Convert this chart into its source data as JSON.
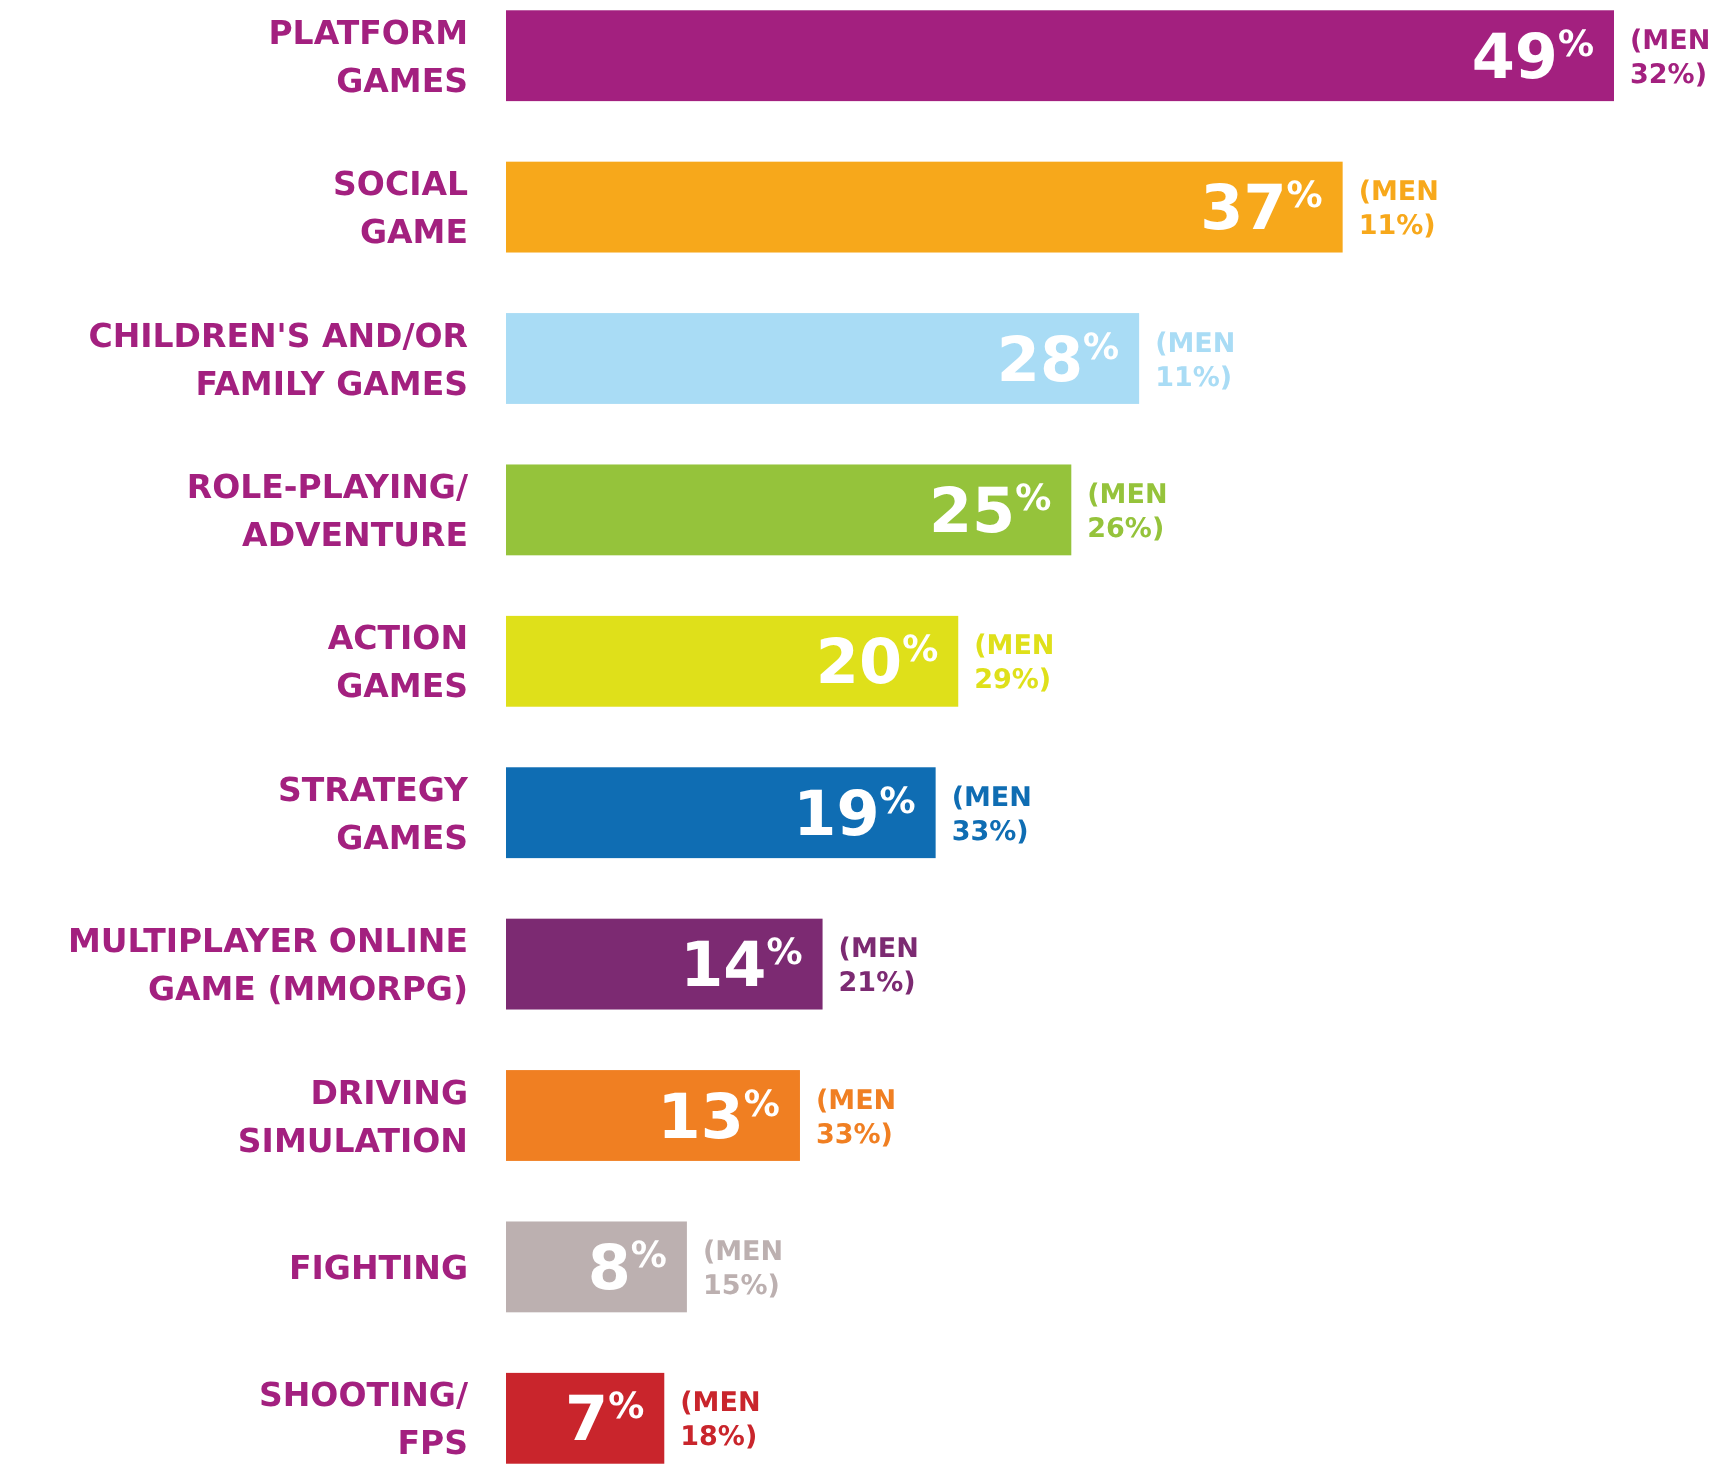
{
  "chart_data": {
    "type": "bar",
    "orientation": "horizontal",
    "categories": [
      "PLATFORM\nGAMES",
      "SOCIAL\nGAME",
      "CHILDREN'S AND/OR\nFAMILY GAMES",
      "ROLE-PLAYING/\nADVENTURE",
      "ACTION\nGAMES",
      "STRATEGY\nGAMES",
      "MULTIPLAYER ONLINE\nGAME (MMORPG)",
      "DRIVING\nSIMULATION",
      "FIGHTING",
      "SHOOTING/\nFPS"
    ],
    "values": [
      49,
      37,
      28,
      25,
      20,
      19,
      14,
      13,
      8,
      7
    ],
    "colors": [
      "#a3207f",
      "#f7a81b",
      "#a9dcf5",
      "#95c33b",
      "#dfe01a",
      "#0f6db3",
      "#7c2a72",
      "#f07f22",
      "#bcb0b0",
      "#c9252c"
    ],
    "value_labels": [
      "49$^{%}$",
      "37$^{%}$",
      "28$^{%}$",
      "25$^{%}$",
      "20$^{%}$",
      "19$^{%}$",
      "14$^{%}$",
      "13$^{%}$",
      "8$^{%}$",
      "7$^{%}$"
    ],
    "annotations": [
      {
        "text": "(MEN 32%)",
        "x": 49,
        "y": "PLATFORM\nGAMES"
      },
      {
        "text": "(MEN 11%)",
        "x": 37,
        "y": "SOCIAL\nGAME"
      },
      {
        "text": "(MEN 11%)",
        "x": 28,
        "y": "CHILDREN'S AND/OR\nFAMILY GAMES"
      },
      {
        "text": "(MEN 26%)",
        "x": 25,
        "y": "ROLE-PLAYING/\nADVENTURE"
      },
      {
        "text": "(MEN 29%)",
        "x": 20,
        "y": "ACTION\nGAMES"
      },
      {
        "text": "(MEN 33%)",
        "x": 19,
        "y": "STRATEGY\nGAMES"
      },
      {
        "text": "(MEN 21%)",
        "x": 14,
        "y": "MULTIPLAYER ONLINE\nGAME (MMORPG)"
      },
      {
        "text": "(MEN 33%)",
        "x": 13,
        "y": "DRIVING\nSIMULATION"
      },
      {
        "text": "(MEN 15%)",
        "x": 8,
        "y": "FIGHTING"
      },
      {
        "text": "(MEN 18%)",
        "x": 7,
        "y": "SHOOTING/\nFPS"
      }
    ]
  }
}
